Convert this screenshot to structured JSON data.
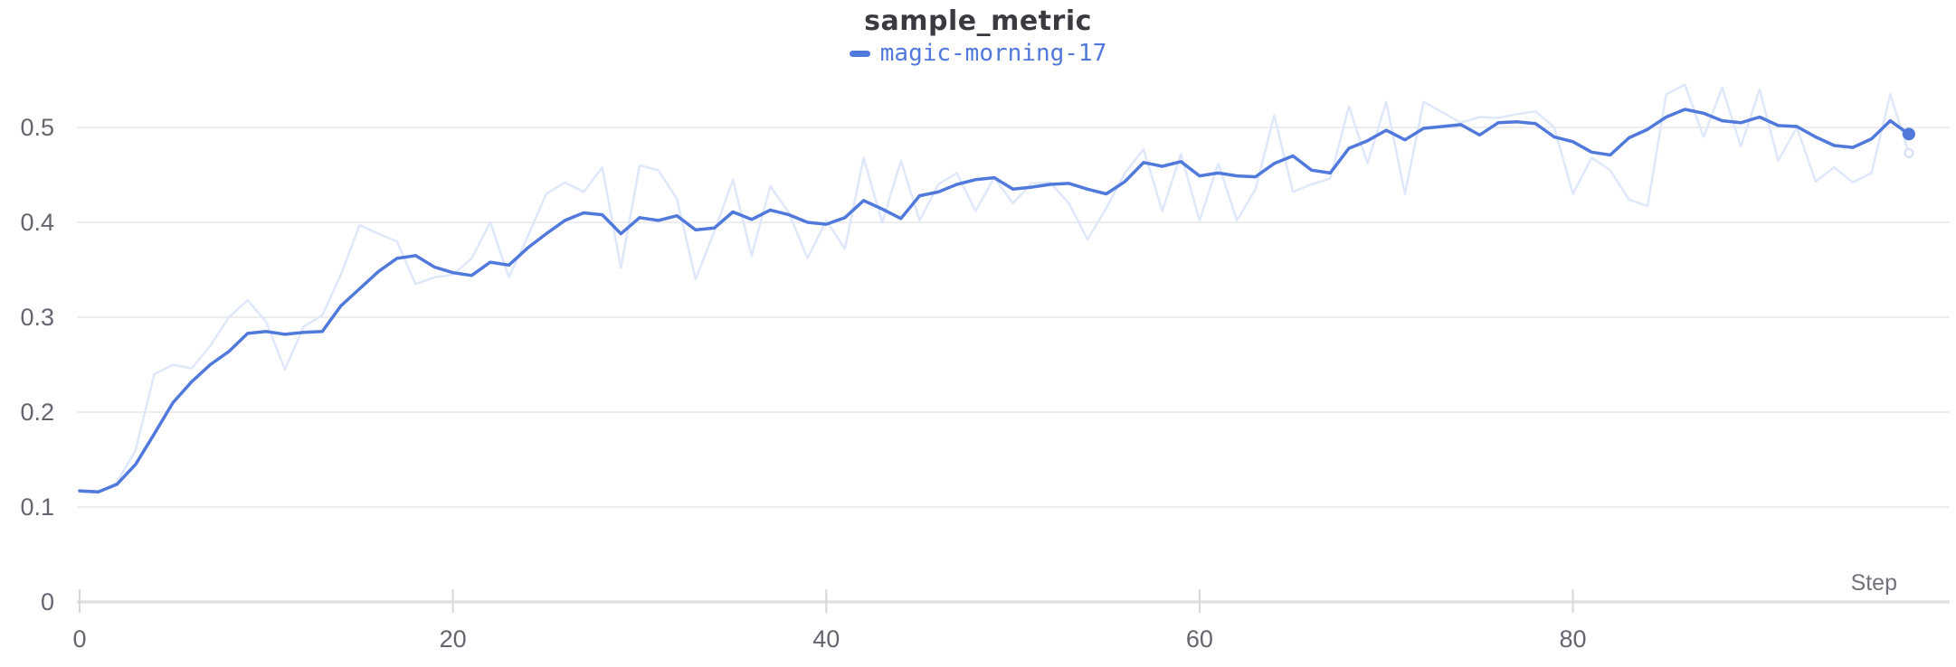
{
  "title": "sample_metric",
  "legend": {
    "run_name": "magic-morning-17",
    "run_color": "#5079db"
  },
  "axes": {
    "x_label": "Step",
    "x_ticks": [
      {
        "value": 0,
        "label": "0"
      },
      {
        "value": 20,
        "label": "20"
      },
      {
        "value": 40,
        "label": "40"
      },
      {
        "value": 60,
        "label": "60"
      },
      {
        "value": 80,
        "label": "80"
      }
    ],
    "y_ticks": [
      {
        "value": 0,
        "label": "0"
      },
      {
        "value": 0.1,
        "label": "0.1"
      },
      {
        "value": 0.2,
        "label": "0.2"
      },
      {
        "value": 0.3,
        "label": "0.3"
      },
      {
        "value": 0.4,
        "label": "0.4"
      },
      {
        "value": 0.5,
        "label": "0.5"
      }
    ]
  },
  "colors": {
    "run": "#5079db",
    "raw": "#dfe8fa",
    "raw_marker_stroke": "#d9e3f7",
    "grid": "#e7e7ea",
    "axis": "#e0e1e5",
    "tick": "#d7d7dc",
    "label": "#65656f",
    "axis_title": "#72727c",
    "title_text": "#3a3a41"
  },
  "chart_data": {
    "type": "line",
    "title": "sample_metric",
    "xlabel": "Step",
    "ylabel": "",
    "xlim": [
      0,
      100
    ],
    "ylim": [
      0,
      0.55
    ],
    "grid": "horizontal",
    "legend_position": "top-center",
    "x_start": 0,
    "x_step": 1,
    "series": [
      {
        "name": "magic-morning-17",
        "role": "smoothed",
        "values": [
          0.117,
          0.116,
          0.124,
          0.145,
          0.177,
          0.21,
          0.232,
          0.25,
          0.264,
          0.283,
          0.285,
          0.282,
          0.284,
          0.285,
          0.312,
          0.33,
          0.348,
          0.362,
          0.365,
          0.353,
          0.347,
          0.344,
          0.358,
          0.355,
          0.373,
          0.388,
          0.402,
          0.41,
          0.408,
          0.388,
          0.405,
          0.402,
          0.407,
          0.392,
          0.394,
          0.411,
          0.403,
          0.413,
          0.408,
          0.4,
          0.398,
          0.405,
          0.423,
          0.414,
          0.404,
          0.428,
          0.432,
          0.44,
          0.445,
          0.447,
          0.435,
          0.437,
          0.44,
          0.441,
          0.435,
          0.43,
          0.443,
          0.463,
          0.459,
          0.464,
          0.449,
          0.452,
          0.449,
          0.448,
          0.462,
          0.47,
          0.455,
          0.452,
          0.478,
          0.486,
          0.497,
          0.487,
          0.499,
          0.501,
          0.503,
          0.492,
          0.505,
          0.506,
          0.504,
          0.49,
          0.485,
          0.474,
          0.471,
          0.489,
          0.498,
          0.511,
          0.519,
          0.515,
          0.507,
          0.505,
          0.511,
          0.502,
          0.501,
          0.49,
          0.481,
          0.479,
          0.488,
          0.507,
          0.493
        ],
        "end_value": 0.493
      },
      {
        "name": "magic-morning-17 (original)",
        "role": "raw",
        "values": [
          0.116,
          0.115,
          0.126,
          0.16,
          0.24,
          0.25,
          0.246,
          0.27,
          0.3,
          0.318,
          0.295,
          0.245,
          0.29,
          0.302,
          0.345,
          0.397,
          0.388,
          0.38,
          0.335,
          0.342,
          0.345,
          0.362,
          0.4,
          0.342,
          0.385,
          0.43,
          0.442,
          0.432,
          0.458,
          0.352,
          0.46,
          0.455,
          0.425,
          0.34,
          0.39,
          0.445,
          0.365,
          0.438,
          0.41,
          0.362,
          0.402,
          0.372,
          0.468,
          0.4,
          0.465,
          0.402,
          0.44,
          0.452,
          0.412,
          0.447,
          0.42,
          0.441,
          0.442,
          0.42,
          0.382,
          0.415,
          0.452,
          0.477,
          0.412,
          0.472,
          0.402,
          0.462,
          0.402,
          0.435,
          0.513,
          0.432,
          0.44,
          0.446,
          0.522,
          0.462,
          0.527,
          0.43,
          0.527,
          0.516,
          0.505,
          0.511,
          0.51,
          0.514,
          0.517,
          0.5,
          0.43,
          0.468,
          0.455,
          0.424,
          0.417,
          0.535,
          0.545,
          0.49,
          0.542,
          0.48,
          0.54,
          0.465,
          0.5,
          0.443,
          0.458,
          0.442,
          0.452,
          0.535,
          0.473
        ],
        "end_value": 0.473
      }
    ]
  }
}
